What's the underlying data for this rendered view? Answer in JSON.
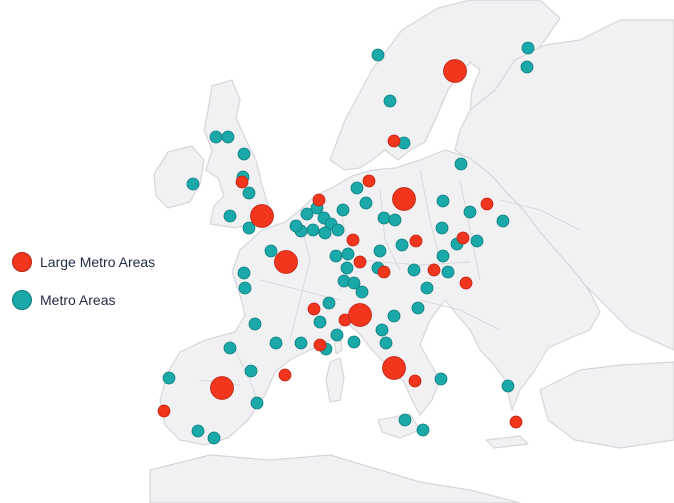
{
  "colors": {
    "large_metro": "#f2351d",
    "metro": "#1aa8a8",
    "large_metro_border": "#b82413",
    "metro_border": "#0e7d7d"
  },
  "legend": {
    "items": [
      {
        "label": "Large Metro Areas",
        "type": "large_metro"
      },
      {
        "label": "Metro Areas",
        "type": "metro"
      }
    ]
  },
  "markers": {
    "large_metro": [
      [
        455,
        71
      ],
      [
        404,
        199
      ],
      [
        262,
        216
      ],
      [
        286,
        262
      ],
      [
        360,
        315
      ],
      [
        394,
        368
      ],
      [
        222,
        388
      ]
    ],
    "metro_red_small": [
      [
        394,
        141
      ],
      [
        369,
        181
      ],
      [
        319,
        200
      ],
      [
        242,
        182
      ],
      [
        353,
        240
      ],
      [
        416,
        241
      ],
      [
        463,
        238
      ],
      [
        487,
        204
      ],
      [
        360,
        262
      ],
      [
        384,
        272
      ],
      [
        434,
        270
      ],
      [
        466,
        283
      ],
      [
        314,
        309
      ],
      [
        345,
        320
      ],
      [
        320,
        345
      ],
      [
        285,
        375
      ],
      [
        415,
        381
      ],
      [
        164,
        411
      ],
      [
        516,
        422
      ]
    ],
    "metro": [
      [
        378,
        55
      ],
      [
        528,
        48
      ],
      [
        527,
        67
      ],
      [
        390,
        101
      ],
      [
        404,
        143
      ],
      [
        216,
        137
      ],
      [
        228,
        137
      ],
      [
        244,
        154
      ],
      [
        243,
        177
      ],
      [
        249,
        193
      ],
      [
        193,
        184
      ],
      [
        230,
        216
      ],
      [
        249,
        228
      ],
      [
        461,
        164
      ],
      [
        357,
        188
      ],
      [
        366,
        203
      ],
      [
        407,
        196
      ],
      [
        384,
        218
      ],
      [
        395,
        220
      ],
      [
        443,
        201
      ],
      [
        470,
        212
      ],
      [
        503,
        221
      ],
      [
        317,
        208
      ],
      [
        324,
        218
      ],
      [
        331,
        224
      ],
      [
        343,
        210
      ],
      [
        338,
        230
      ],
      [
        325,
        233
      ],
      [
        313,
        230
      ],
      [
        301,
        231
      ],
      [
        307,
        214
      ],
      [
        296,
        226
      ],
      [
        271,
        251
      ],
      [
        380,
        251
      ],
      [
        442,
        228
      ],
      [
        457,
        244
      ],
      [
        477,
        241
      ],
      [
        336,
        256
      ],
      [
        348,
        254
      ],
      [
        347,
        268
      ],
      [
        344,
        281
      ],
      [
        354,
        283
      ],
      [
        402,
        245
      ],
      [
        414,
        270
      ],
      [
        448,
        272
      ],
      [
        378,
        268
      ],
      [
        443,
        256
      ],
      [
        427,
        288
      ],
      [
        244,
        273
      ],
      [
        245,
        288
      ],
      [
        255,
        324
      ],
      [
        230,
        348
      ],
      [
        276,
        343
      ],
      [
        301,
        343
      ],
      [
        320,
        322
      ],
      [
        337,
        335
      ],
      [
        354,
        342
      ],
      [
        326,
        349
      ],
      [
        382,
        330
      ],
      [
        386,
        343
      ],
      [
        394,
        316
      ],
      [
        418,
        308
      ],
      [
        169,
        378
      ],
      [
        251,
        371
      ],
      [
        257,
        403
      ],
      [
        198,
        431
      ],
      [
        214,
        438
      ],
      [
        405,
        420
      ],
      [
        423,
        430
      ],
      [
        441,
        379
      ],
      [
        508,
        386
      ],
      [
        362,
        292
      ],
      [
        329,
        303
      ]
    ]
  }
}
